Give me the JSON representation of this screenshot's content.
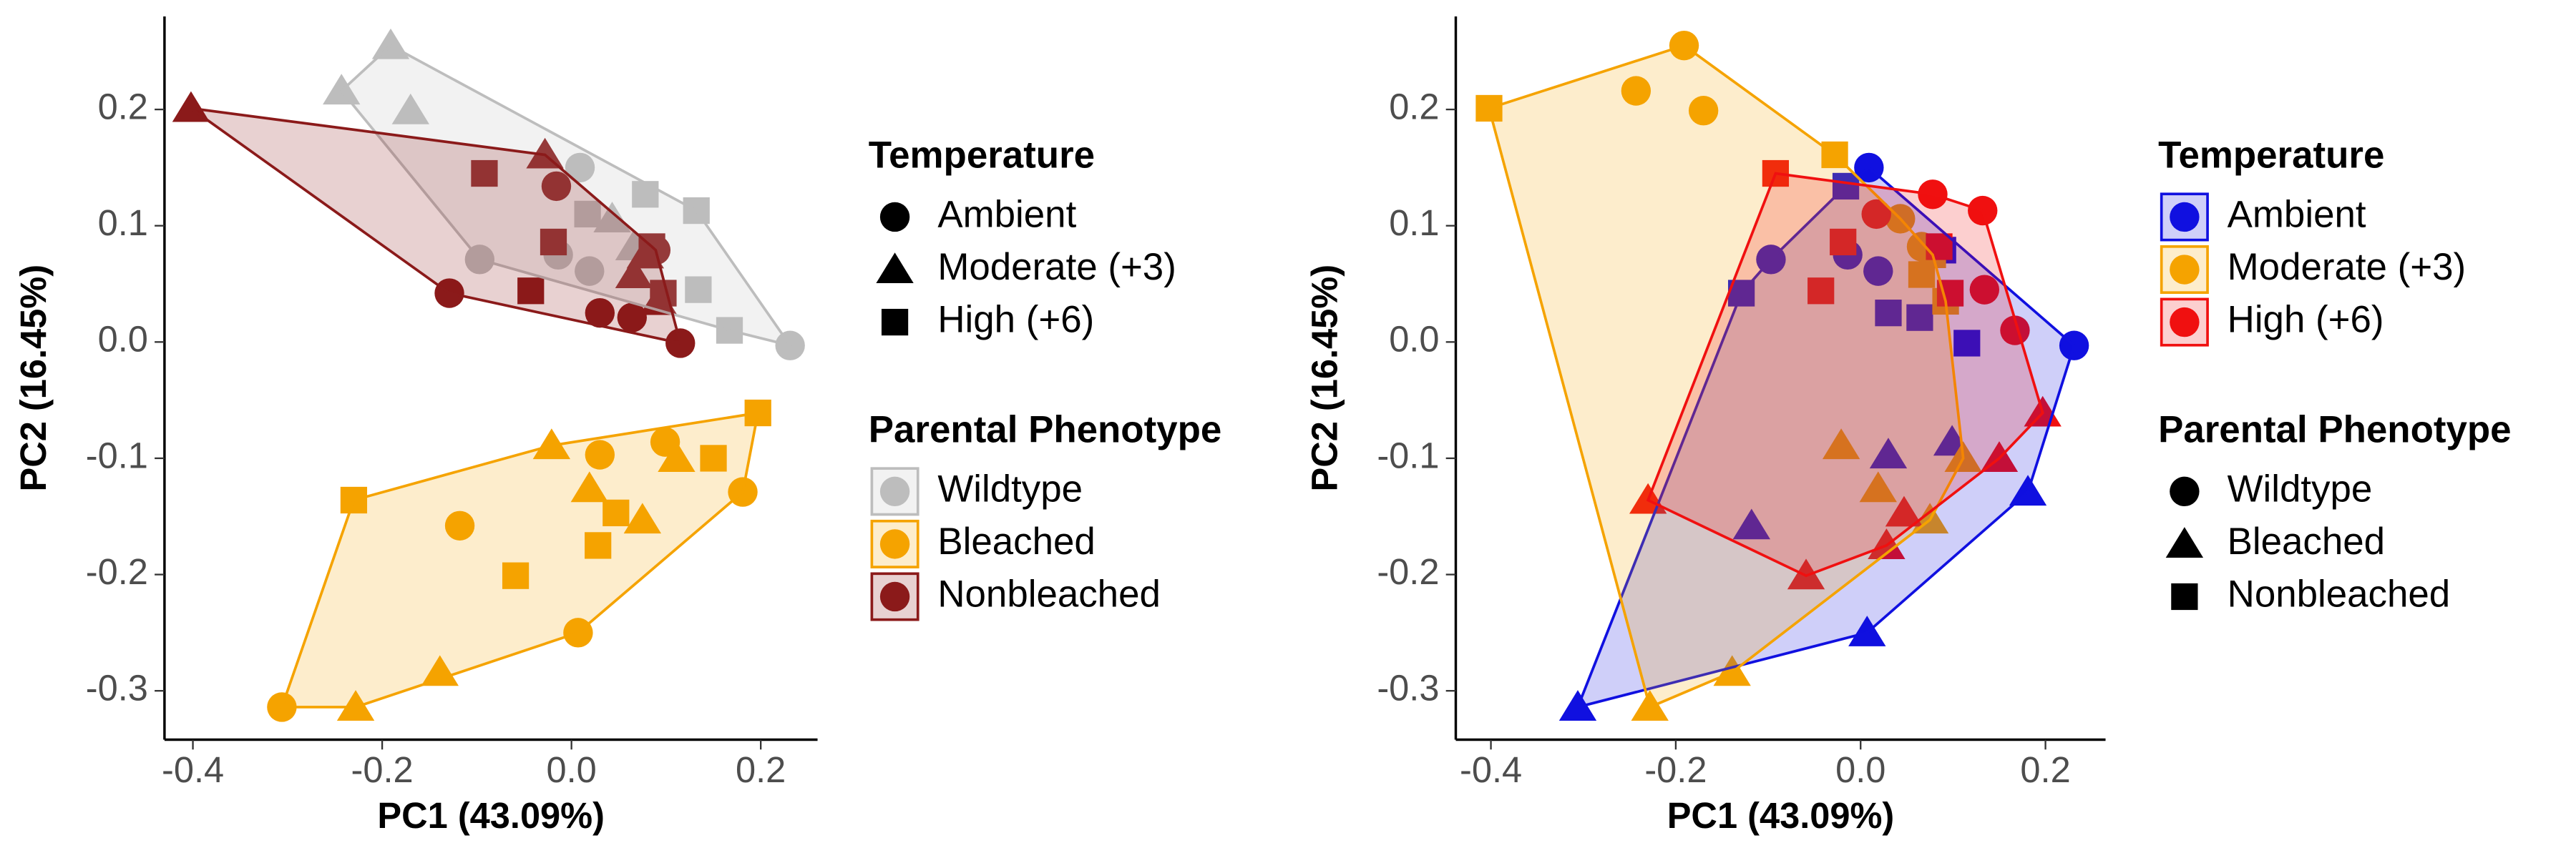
{
  "chart_data": [
    {
      "type": "scatter",
      "x_label": "PC1 (43.09%)",
      "y_label": "PC2 (16.45%)",
      "xlim": [
        -0.43,
        0.26
      ],
      "ylim": [
        -0.342,
        0.28
      ],
      "xticks": [
        -0.4,
        -0.2,
        {
          "value": 0,
          "label": "0.0"
        },
        0.2
      ],
      "yticks": [
        -0.3,
        -0.2,
        -0.1,
        {
          "value": 0,
          "label": "0.0"
        },
        0.1,
        0.2
      ],
      "legend_order": [
        "shape",
        "color"
      ],
      "shape_legend": {
        "title": "Temperature",
        "names": [
          "Ambient",
          "Moderate (+3)",
          "High (+6)"
        ],
        "shapes": [
          "circle",
          "triangle",
          "square"
        ]
      },
      "color_legend_title": "Parental Phenotype",
      "series": [
        {
          "name": "Wildtype",
          "color": "#bdbdbd",
          "x": [
            0.009,
            -0.097,
            -0.014,
            0.019,
            0.231,
            -0.191,
            -0.243,
            -0.17,
            0.043,
            0.066,
            0.017,
            0.078,
            0.132,
            0.134,
            0.167
          ],
          "y": [
            0.15,
            0.071,
            0.075,
            0.061,
            -0.003,
            0.255,
            0.216,
            0.199,
            0.106,
            0.082,
            0.11,
            0.127,
            0.113,
            0.045,
            0.01
          ],
          "shapes": [
            "circle",
            "circle",
            "circle",
            "circle",
            "circle",
            "triangle",
            "triangle",
            "triangle",
            "triangle",
            "triangle",
            "square",
            "square",
            "square",
            "square",
            "square"
          ]
        },
        {
          "name": "Bleached",
          "color": "#f5a300",
          "x": [
            -0.306,
            -0.118,
            0.007,
            0.03,
            0.099,
            0.181,
            -0.228,
            -0.139,
            -0.021,
            0.019,
            0.111,
            0.075,
            -0.23,
            -0.059,
            0.028,
            0.047,
            0.15,
            0.197
          ],
          "y": [
            -0.314,
            -0.158,
            -0.25,
            -0.097,
            -0.086,
            -0.129,
            -0.314,
            -0.284,
            -0.089,
            -0.126,
            -0.1,
            -0.153,
            -0.136,
            -0.201,
            -0.175,
            -0.147,
            -0.1,
            -0.061
          ],
          "shapes": [
            "circle",
            "circle",
            "circle",
            "circle",
            "circle",
            "circle",
            "triangle",
            "triangle",
            "triangle",
            "triangle",
            "triangle",
            "triangle",
            "square",
            "square",
            "square",
            "square",
            "square",
            "square"
          ]
        },
        {
          "name": "Nonbleached",
          "color": "#8b1a1a",
          "x": [
            -0.129,
            -0.016,
            0.03,
            0.064,
            0.115,
            0.089,
            -0.402,
            -0.028,
            0.078,
            0.066,
            0.092,
            -0.092,
            -0.019,
            -0.043,
            0.097,
            0.085
          ],
          "y": [
            0.042,
            0.134,
            0.025,
            0.021,
            -0.001,
            0.079,
            0.201,
            0.161,
            0.075,
            0.058,
            0.035,
            0.145,
            0.086,
            0.044,
            0.042,
            0.082
          ],
          "shapes": [
            "circle",
            "circle",
            "circle",
            "circle",
            "circle",
            "circle",
            "triangle",
            "triangle",
            "triangle",
            "triangle",
            "triangle",
            "square",
            "square",
            "square",
            "square",
            "square"
          ]
        }
      ]
    },
    {
      "type": "scatter",
      "x_label": "PC1 (43.09%)",
      "y_label": "PC2 (16.45%)",
      "xlim": [
        -0.438,
        0.265
      ],
      "ylim": [
        -0.342,
        0.28
      ],
      "xticks": [
        -0.4,
        -0.2,
        {
          "value": 0,
          "label": "0.0"
        },
        0.2
      ],
      "yticks": [
        -0.3,
        -0.2,
        -0.1,
        {
          "value": 0,
          "label": "0.0"
        },
        0.1,
        0.2
      ],
      "legend_order": [
        "color",
        "shape"
      ],
      "shape_legend": {
        "title": "Parental Phenotype",
        "names": [
          "Wildtype",
          "Bleached",
          "Nonbleached"
        ],
        "shapes": [
          "circle",
          "triangle",
          "square"
        ]
      },
      "color_legend_title": "Temperature",
      "series": [
        {
          "name": "Ambient",
          "color": "#1010e0",
          "x": [
            0.009,
            -0.097,
            -0.014,
            0.019,
            0.231,
            -0.306,
            -0.118,
            0.007,
            0.03,
            0.099,
            0.181,
            -0.129,
            -0.016,
            0.03,
            0.064,
            0.115,
            0.089
          ],
          "y": [
            0.15,
            0.071,
            0.075,
            0.061,
            -0.003,
            -0.314,
            -0.158,
            -0.25,
            -0.097,
            -0.086,
            -0.129,
            0.042,
            0.134,
            0.025,
            0.021,
            -0.001,
            0.079
          ],
          "shapes": [
            "circle",
            "circle",
            "circle",
            "circle",
            "circle",
            "triangle",
            "triangle",
            "triangle",
            "triangle",
            "triangle",
            "triangle",
            "square",
            "square",
            "square",
            "square",
            "square",
            "square"
          ]
        },
        {
          "name": "Moderate (+3)",
          "color": "#f5a300",
          "x": [
            -0.191,
            -0.243,
            -0.17,
            0.043,
            0.066,
            -0.228,
            -0.139,
            -0.021,
            0.019,
            0.111,
            0.075,
            -0.402,
            -0.028,
            0.078,
            0.066,
            0.092
          ],
          "y": [
            0.255,
            0.216,
            0.199,
            0.106,
            0.082,
            -0.314,
            -0.284,
            -0.089,
            -0.126,
            -0.1,
            -0.153,
            0.201,
            0.161,
            0.075,
            0.058,
            0.035
          ],
          "shapes": [
            "circle",
            "circle",
            "circle",
            "circle",
            "circle",
            "triangle",
            "triangle",
            "triangle",
            "triangle",
            "triangle",
            "triangle",
            "square",
            "square",
            "square",
            "square",
            "square"
          ]
        },
        {
          "name": "High (+6)",
          "color": "#f01010",
          "x": [
            0.017,
            0.078,
            0.132,
            0.134,
            0.167,
            -0.23,
            -0.059,
            0.028,
            0.047,
            0.15,
            0.197,
            -0.092,
            -0.019,
            -0.043,
            0.097,
            0.085
          ],
          "y": [
            0.11,
            0.127,
            0.113,
            0.045,
            0.01,
            -0.136,
            -0.201,
            -0.175,
            -0.147,
            -0.1,
            -0.061,
            0.145,
            0.086,
            0.044,
            0.042,
            0.082
          ],
          "shapes": [
            "circle",
            "circle",
            "circle",
            "circle",
            "circle",
            "triangle",
            "triangle",
            "triangle",
            "triangle",
            "triangle",
            "triangle",
            "square",
            "square",
            "square",
            "square",
            "square"
          ]
        }
      ]
    }
  ]
}
